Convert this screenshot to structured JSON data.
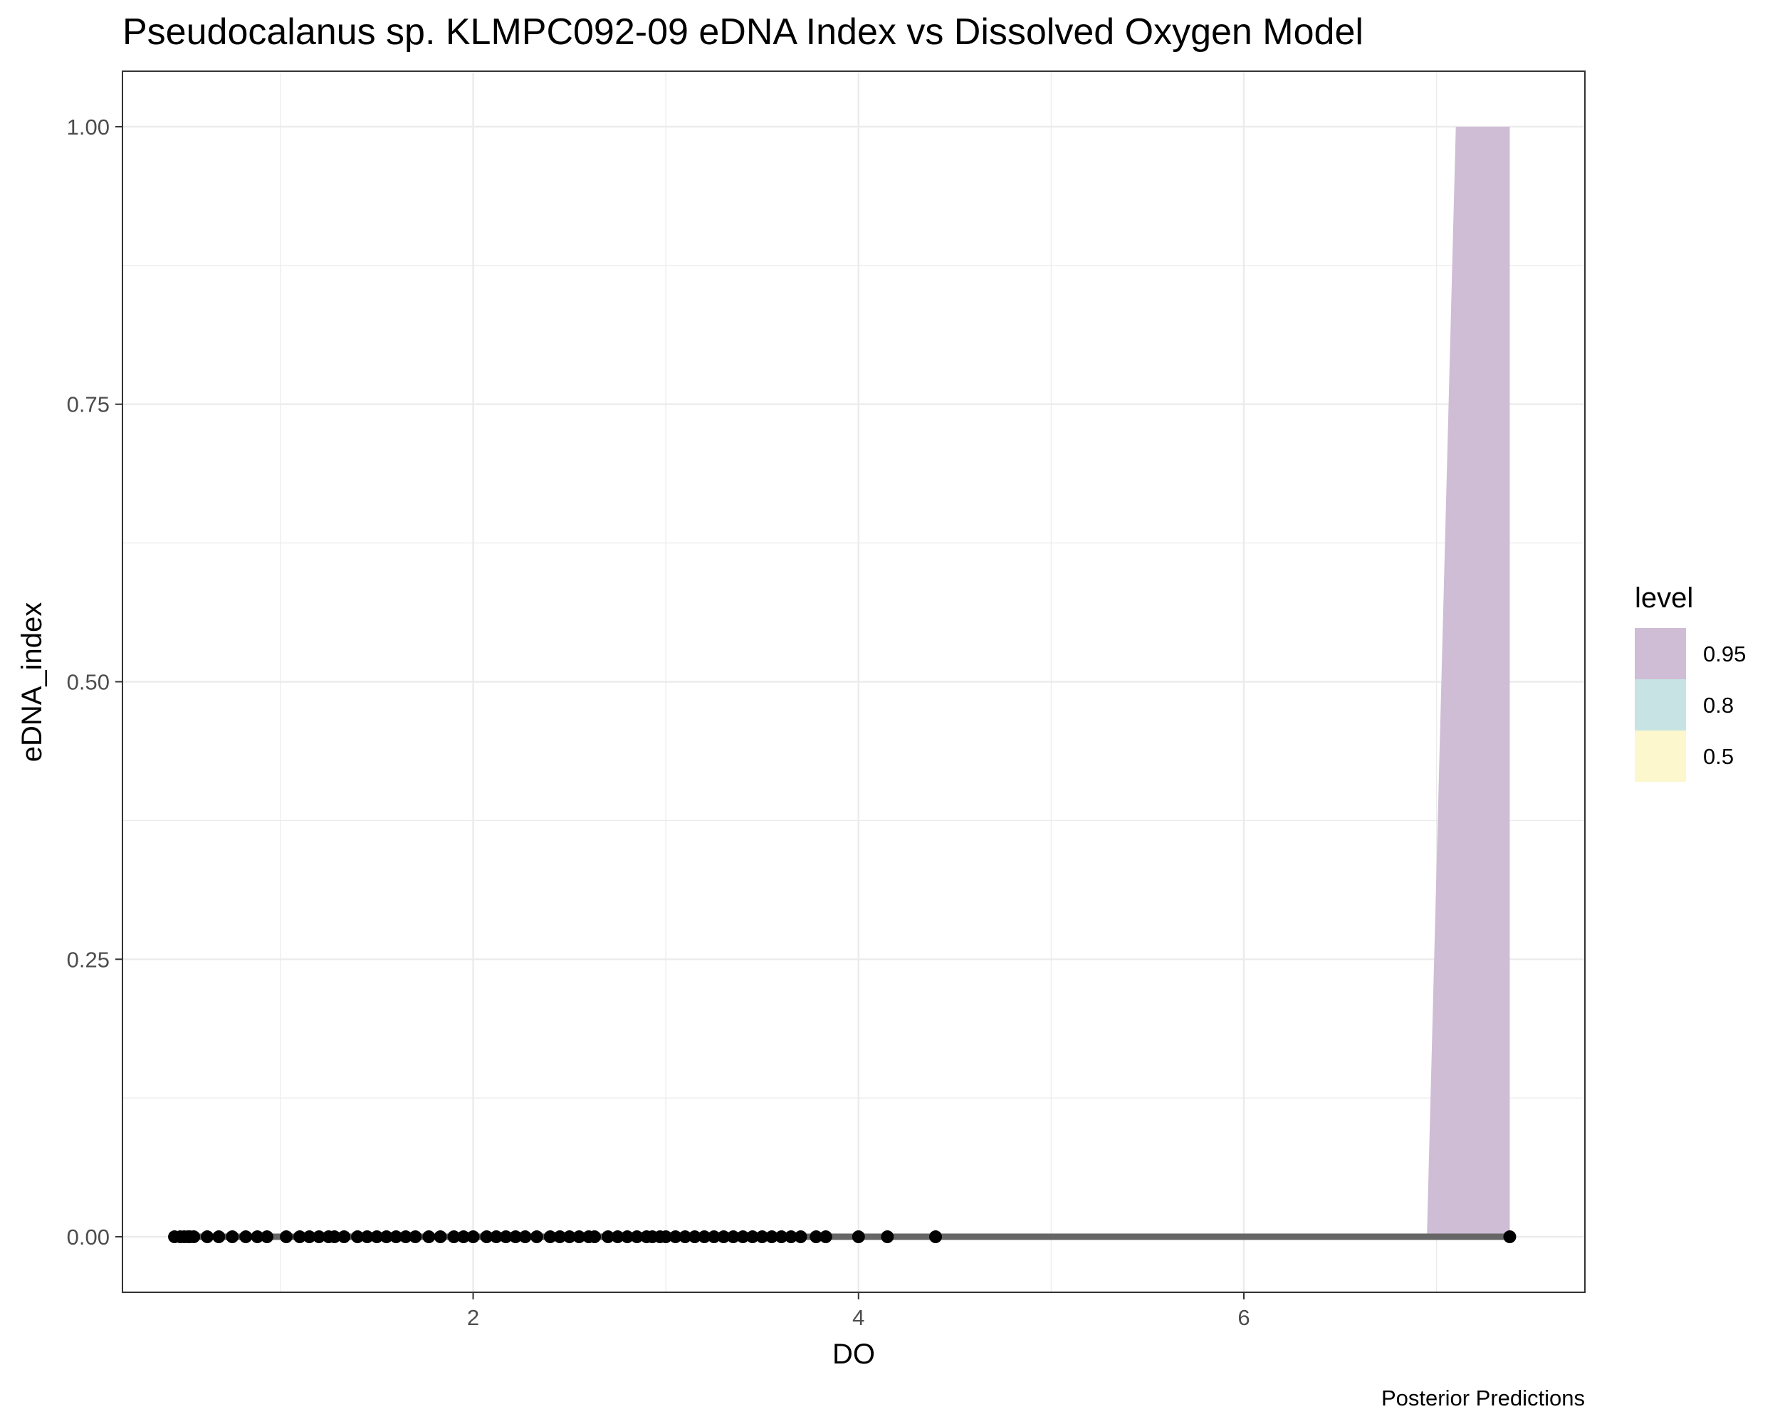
{
  "chart_data": {
    "type": "line",
    "title": "Pseudocalanus sp. KLMPC092-09 eDNA Index vs Dissolved Oxygen Model",
    "caption": "Posterior Predictions",
    "xlabel": "DO",
    "ylabel": "eDNA_index",
    "xlim": [
      0.18,
      7.77
    ],
    "ylim": [
      -0.05,
      1.05
    ],
    "x_ticks": [
      2,
      4,
      6
    ],
    "x_tick_labels": [
      "2",
      "4",
      "6"
    ],
    "x_minor_ticks": [
      1,
      3,
      5,
      7
    ],
    "y_ticks": [
      0,
      0.25,
      0.5,
      0.75,
      1
    ],
    "y_tick_labels": [
      "0.00",
      "0.25",
      "0.50",
      "0.75",
      "1.00"
    ],
    "y_minor_ticks": [
      0.125,
      0.375,
      0.625,
      0.875
    ],
    "grid": true,
    "legend": {
      "title": "level",
      "position": "right",
      "entries": [
        {
          "label": "0.95",
          "color": "#cfbdd6"
        },
        {
          "label": "0.8",
          "color": "#c7e3e3"
        },
        {
          "label": "0.5",
          "color": "#fcf7cc"
        }
      ]
    },
    "ribbons": [
      {
        "level": "0.95",
        "color": "#cfbdd6",
        "x": [
          6.95,
          7.1,
          7.38
        ],
        "ymin": [
          0,
          0,
          0
        ],
        "ymax": [
          0,
          1,
          1
        ]
      }
    ],
    "fit_line": {
      "color": "#666666",
      "x": [
        0.45,
        7.38
      ],
      "y": [
        0,
        0
      ]
    },
    "points": {
      "color": "#000000",
      "x": [
        0.45,
        0.48,
        0.5,
        0.52,
        0.53,
        0.55,
        0.62,
        0.68,
        0.75,
        0.82,
        0.88,
        0.93,
        1.03,
        1.1,
        1.15,
        1.2,
        1.25,
        1.28,
        1.33,
        1.4,
        1.45,
        1.5,
        1.55,
        1.6,
        1.65,
        1.7,
        1.77,
        1.83,
        1.9,
        1.95,
        2.0,
        2.07,
        2.12,
        2.17,
        2.22,
        2.27,
        2.33,
        2.4,
        2.45,
        2.5,
        2.55,
        2.6,
        2.63,
        2.7,
        2.75,
        2.8,
        2.85,
        2.9,
        2.93,
        2.97,
        3.0,
        3.05,
        3.1,
        3.15,
        3.2,
        3.25,
        3.3,
        3.35,
        3.4,
        3.45,
        3.5,
        3.55,
        3.6,
        3.65,
        3.7,
        3.78,
        3.83,
        4.0,
        4.15,
        4.4,
        7.38
      ],
      "y": [
        0,
        0,
        0,
        0,
        0,
        0,
        0,
        0,
        0,
        0,
        0,
        0,
        0,
        0,
        0,
        0,
        0,
        0,
        0,
        0,
        0,
        0,
        0,
        0,
        0,
        0,
        0,
        0,
        0,
        0,
        0,
        0,
        0,
        0,
        0,
        0,
        0,
        0,
        0,
        0,
        0,
        0,
        0,
        0,
        0,
        0,
        0,
        0,
        0,
        0,
        0,
        0,
        0,
        0,
        0,
        0,
        0,
        0,
        0,
        0,
        0,
        0,
        0,
        0,
        0,
        0,
        0,
        0,
        0,
        0,
        0
      ]
    }
  }
}
